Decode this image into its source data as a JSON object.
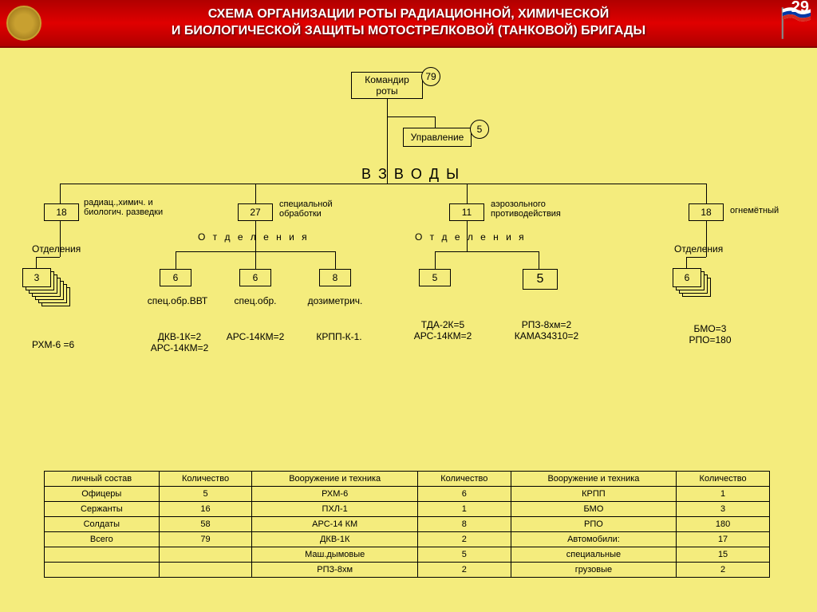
{
  "page_number": "29",
  "title_line1": "СХЕМА ОРГАНИЗАЦИИ РОТЫ РАДИАЦИОННОЙ, ХИМИЧЕСКОЙ",
  "title_line2": "И БИОЛОГИЧЕСКОЙ ЗАЩИТЫ МОТОСТРЕЛКОВОЙ (ТАНКОВОЙ) БРИГАДЫ",
  "root": {
    "label": "Командир роты",
    "badge": "79"
  },
  "mgmt": {
    "label": "Управление",
    "badge": "5"
  },
  "section_word": "В   З   В   О   Д   Ы",
  "sub_word": "О т д е л е н и я",
  "platoons": [
    {
      "count": "18",
      "desc": "радиац.,химич. и биологич. разведки",
      "sublabel": "Отделения",
      "detail": "РХМ-6 =6",
      "sq": "3"
    },
    {
      "count": "27",
      "desc": "специальной обработки",
      "sqs": [
        "6",
        "6",
        "8"
      ],
      "sqlbls": [
        "спец.обр.ВВТ",
        "спец.обр.",
        "дозиметрич."
      ],
      "details": [
        "ДКВ-1К=2\nАРС-14КМ=2",
        "АРС-14КМ=2",
        "КРПП-К-1."
      ]
    },
    {
      "count": "11",
      "desc": "аэрозольного противодействия",
      "sqs": [
        "5",
        "5"
      ],
      "details": [
        "ТДА-2К=5\nАРС-14КМ=2",
        "РПЗ-8хм=2\nКАМАЗ4310=2"
      ]
    },
    {
      "count": "18",
      "desc": "огнемётный",
      "sublabel": "Отделения",
      "sq": "6",
      "details": [
        "БМО=3\nРПО=180"
      ]
    }
  ],
  "table": {
    "headers": [
      "личный состав",
      "Количество",
      "Вооружение и техника",
      "Количество",
      "Вооружение и техника",
      "Количество"
    ],
    "rows": [
      [
        "Офицеры",
        "5",
        "РХМ-6",
        "6",
        "КРПП",
        "1"
      ],
      [
        "Сержанты",
        "16",
        "ПХЛ-1",
        "1",
        "БМО",
        "3"
      ],
      [
        "Солдаты",
        "58",
        "АРС-14 КМ",
        "8",
        "РПО",
        "180"
      ],
      [
        "Всего",
        "79",
        "ДКВ-1К",
        "2",
        "Автомобили:",
        "17"
      ],
      [
        "",
        "",
        "Маш.дымовые",
        "5",
        "специальные",
        "15"
      ],
      [
        "",
        "",
        "РПЗ-8хм",
        "2",
        "грузовые",
        "2"
      ]
    ]
  },
  "colors": {
    "bg": "#f4ec7d",
    "header": "#c00000",
    "line": "#000000"
  }
}
